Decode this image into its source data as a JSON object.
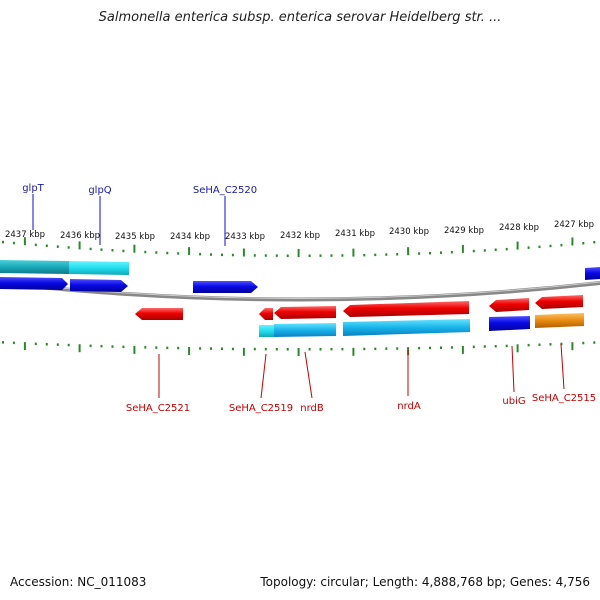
{
  "title": "Salmonella enterica subsp. enterica serovar Heidelberg str. ...",
  "footer": {
    "accession": "Accession: NC_011083",
    "topology": "Topology: circular; Length: 4,888,768 bp; Genes: 4,756"
  },
  "colors": {
    "forward_blue": "#0a0ae6",
    "reverse_red": "#e60000",
    "cyan_light": "#22ddee",
    "cyan_dark": "#1aaaba",
    "orange": "#e88a10",
    "tick_green": "#2a8a2a",
    "backbone_gray": "#888888",
    "label_top": "#1a1aa8",
    "label_bottom": "#c80000"
  },
  "scale": {
    "labels": [
      "2437 kbp",
      "2436 kbp",
      "2435 kbp",
      "2434 kbp",
      "2433 kbp",
      "2432 kbp",
      "2431 kbp",
      "2430 kbp",
      "2429 kbp",
      "2428 kbp",
      "2427 kbp"
    ]
  },
  "genes_top": [
    "glpT",
    "glpQ",
    "SeHA_C2520"
  ],
  "genes_bottom": [
    "SeHA_C2521",
    "SeHA_C2519",
    "nrdB",
    "nrdA",
    "ubiG",
    "SeHA_C2515"
  ]
}
